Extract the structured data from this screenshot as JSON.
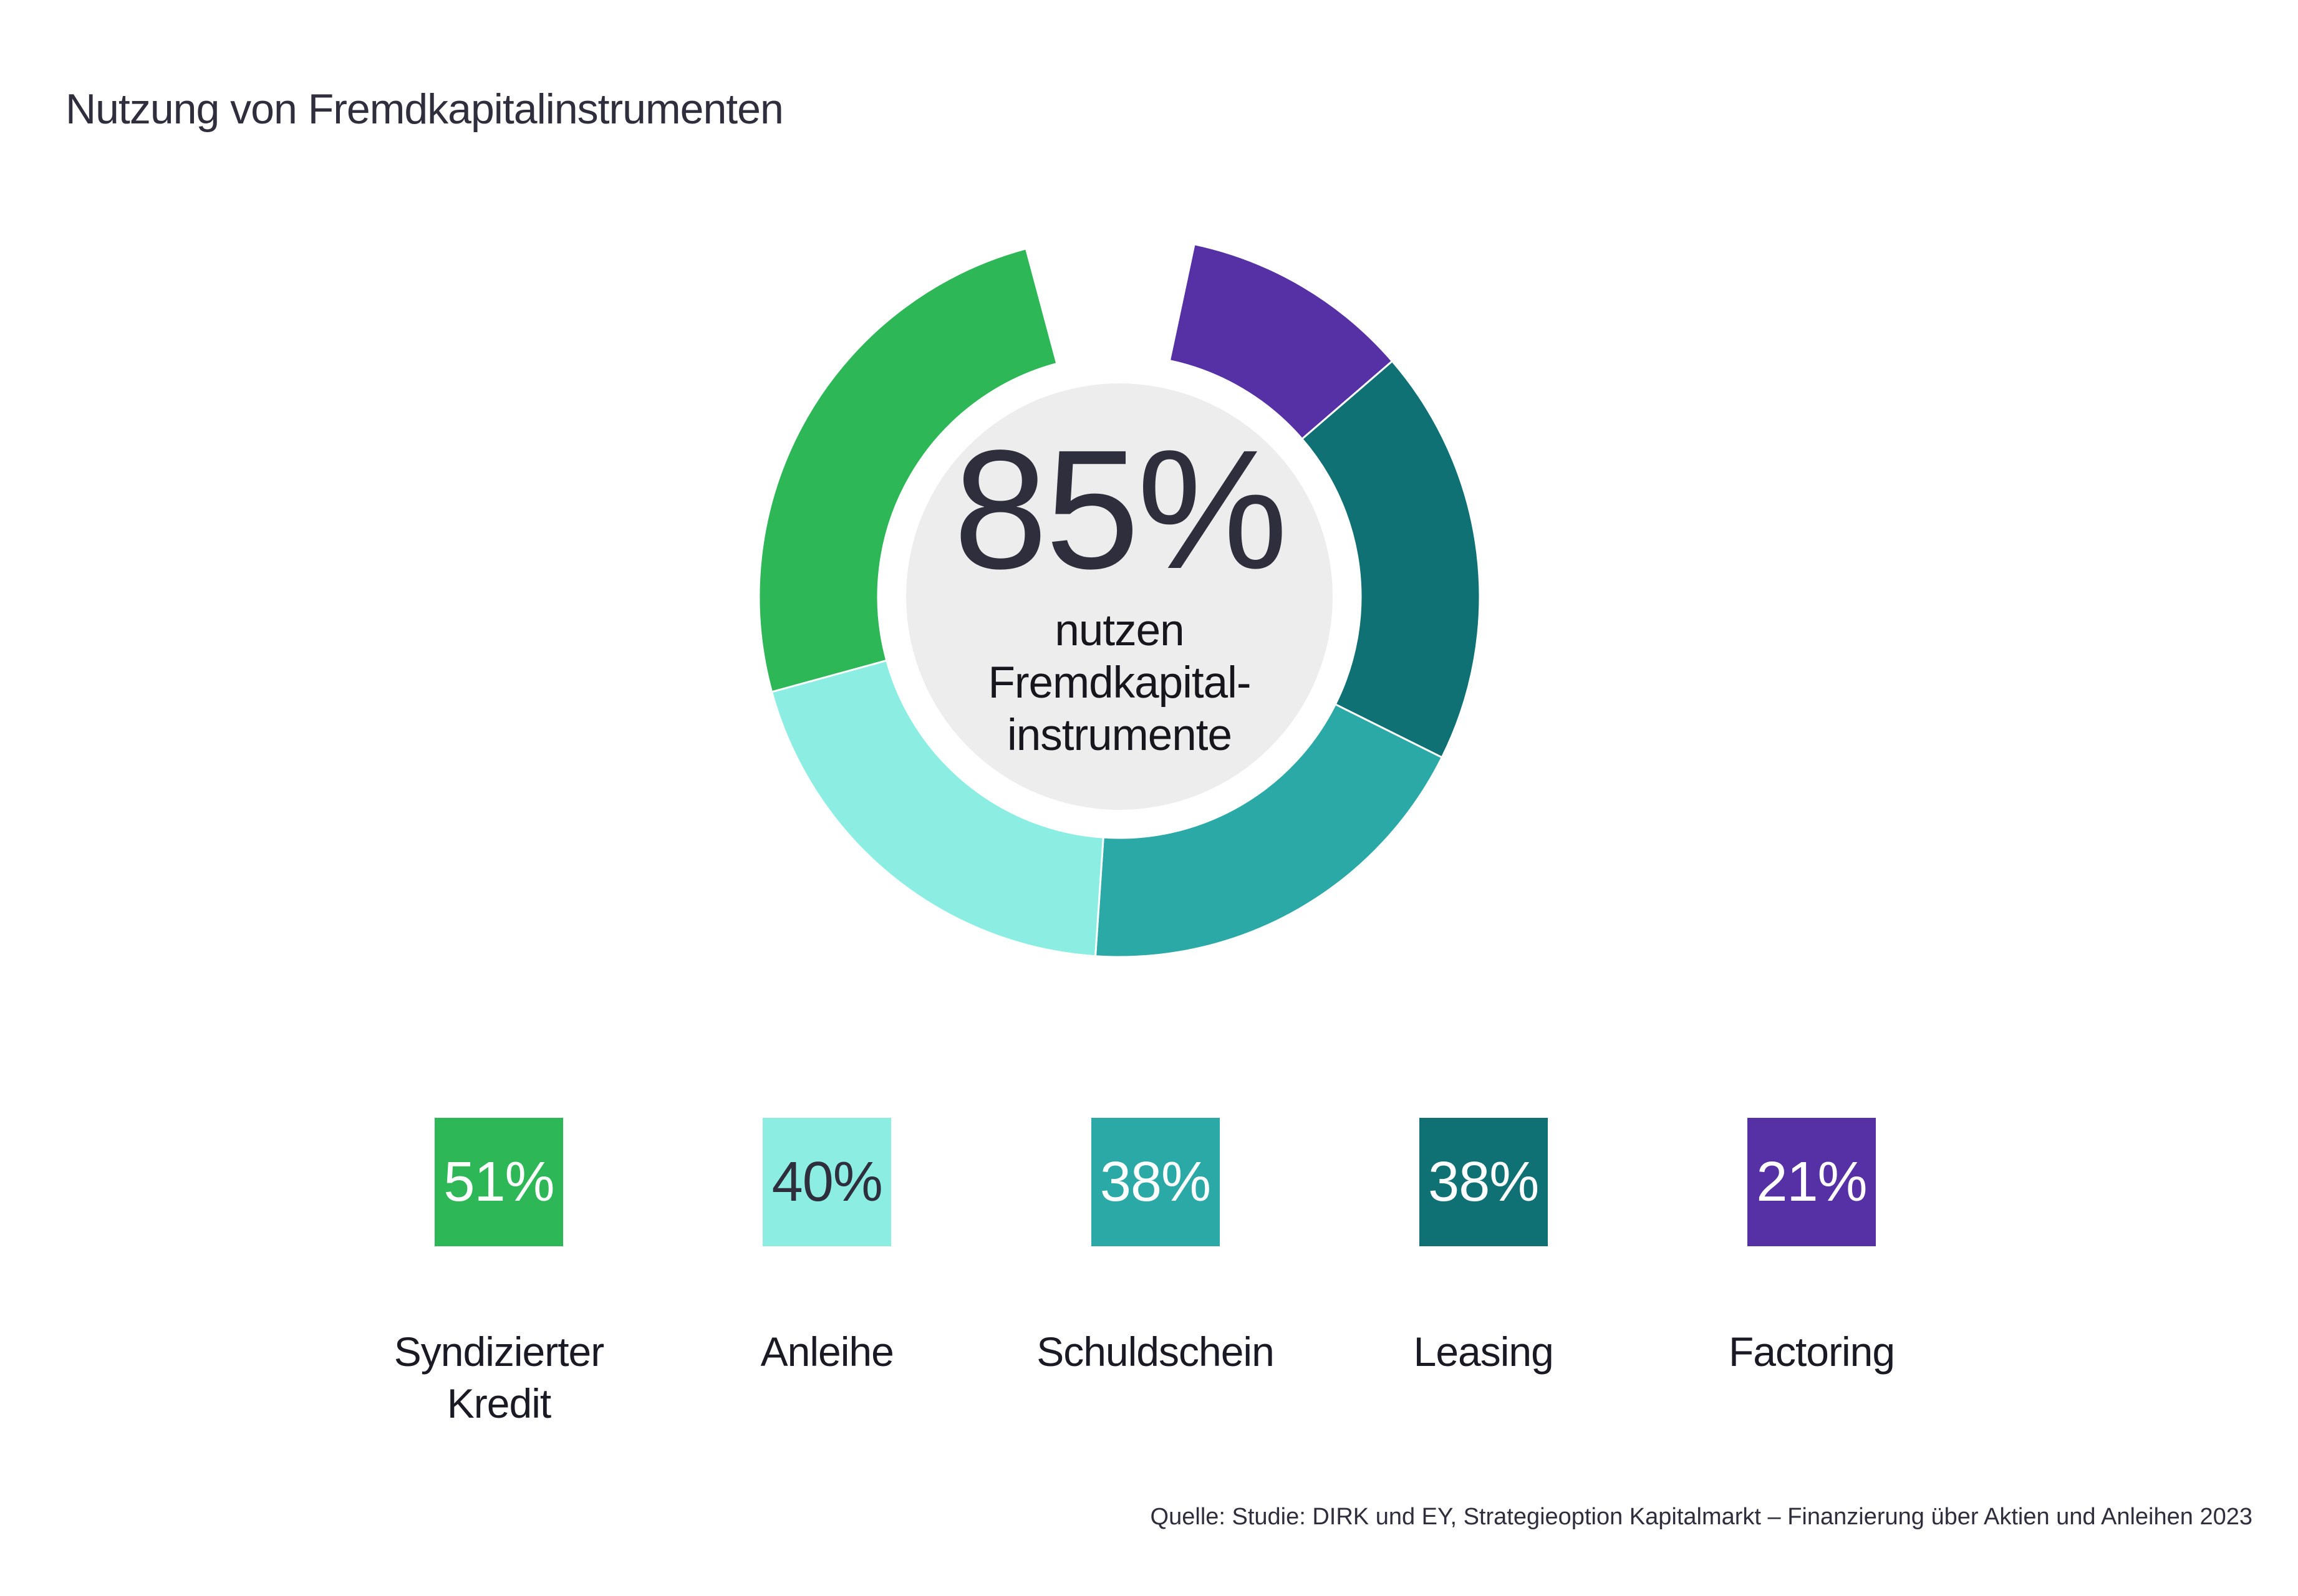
{
  "title": "Nutzung von Fremdkapitalinstrumenten",
  "source_note": "Quelle: Studie: DIRK und EY, Strategieoption Kapitalmarkt – Finanzierung über Aktien und Anleihen 2023",
  "chart_data": {
    "type": "donut",
    "title": "Nutzung von Fremdkapitalinstrumenten",
    "center_label": {
      "value": "85%",
      "lines": [
        "nutzen",
        "Fremdkapital-",
        "instrumente"
      ]
    },
    "segments": [
      {
        "label": "Syndizierter Kredit",
        "value": 51,
        "display": "51%",
        "color": "#2DB757",
        "value_text_color": "#FFFFFF"
      },
      {
        "label": "Anleihe",
        "value": 40,
        "display": "40%",
        "color": "#8CEEE3",
        "value_text_color": "#2E2E3C"
      },
      {
        "label": "Schuldschein",
        "value": 38,
        "display": "38%",
        "color": "#2BA9A6",
        "value_text_color": "#FFFFFF"
      },
      {
        "label": "Leasing",
        "value": 38,
        "display": "38%",
        "color": "#107175",
        "value_text_color": "#FFFFFF"
      },
      {
        "label": "Factoring",
        "value": 21,
        "display": "21%",
        "color": "#5531A5",
        "value_text_color": "#FFFFFF"
      }
    ],
    "layout_hints": {
      "order_clockwise_from_top": [
        "Factoring",
        "Leasing",
        "Schuldschein",
        "Anleihe",
        "Syndizierter Kredit"
      ],
      "top_gap_deg": 27,
      "gap_start_deg": 12,
      "separator_color": "#FFFFFF",
      "hub_color": "#EDEDED",
      "legend_position": "bottom"
    }
  }
}
